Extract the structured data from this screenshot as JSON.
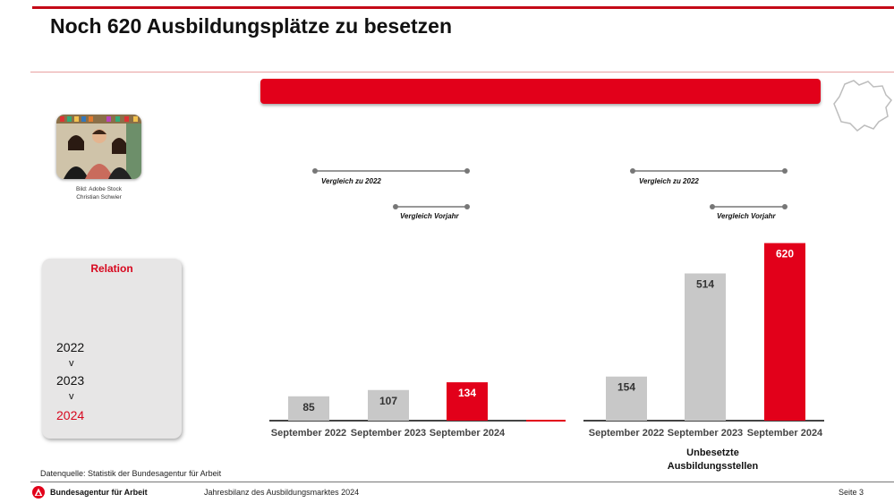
{
  "header": {
    "title": "Noch 620 Ausbildungsplätze zu besetzen"
  },
  "photo": {
    "caption_line1": "Bild: Adobe Stock",
    "caption_line2": "Christian Schwier"
  },
  "relation": {
    "title": "Relation",
    "years": [
      "2022",
      "2023",
      "2024"
    ],
    "separator": "v"
  },
  "footer": {
    "data_source": "Datenquelle: Statistik der Bundesagentur für Arbeit",
    "org_name": "Bundesagentur für Arbeit",
    "center_text": "Jahresbilanz des Ausbildungsmarktes 2024",
    "page": "Seite 3"
  },
  "colors": {
    "accent_red": "#e2001a",
    "bar_gray": "#c8c8c8",
    "title_red": "#d7071e"
  },
  "icons": [
    "region-map-icon",
    "ba-logo-icon"
  ],
  "chart_data": [
    {
      "type": "bar",
      "categories": [
        "September 2022",
        "September 2023",
        "September 2024"
      ],
      "values": [
        85,
        107,
        134
      ],
      "value_labels": [
        "85",
        "107",
        "134"
      ],
      "highlight_index": 2,
      "ylim": [
        0,
        700
      ],
      "xlabel": "",
      "comparisons": [
        {
          "label": "Vergleich zu 2022",
          "from": 0,
          "to": 2
        },
        {
          "label": "Vergleich Vorjahr",
          "from": 1,
          "to": 2
        }
      ]
    },
    {
      "type": "bar",
      "categories": [
        "September 2022",
        "September 2023",
        "September 2024"
      ],
      "values": [
        154,
        514,
        620
      ],
      "value_labels": [
        "154",
        "514",
        "620"
      ],
      "highlight_index": 2,
      "ylim": [
        0,
        700
      ],
      "xlabel_line1": "Unbesetzte",
      "xlabel_line2": "Ausbildungsstellen",
      "comparisons": [
        {
          "label": "Vergleich zu 2022",
          "from": 0,
          "to": 2
        },
        {
          "label": "Vergleich Vorjahr",
          "from": 1,
          "to": 2
        }
      ]
    }
  ]
}
